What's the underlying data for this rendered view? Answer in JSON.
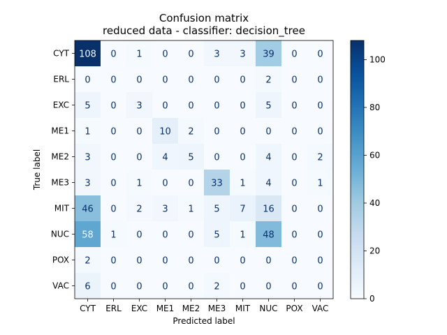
{
  "chart_data": {
    "type": "heatmap",
    "title": "Confusion matrix",
    "subtitle": "reduced data - classifier: decision_tree",
    "xlabel": "Predicted label",
    "ylabel": "True label",
    "categories": [
      "CYT",
      "ERL",
      "EXC",
      "ME1",
      "ME2",
      "ME3",
      "MIT",
      "NUC",
      "POX",
      "VAC"
    ],
    "matrix": [
      [
        108,
        0,
        1,
        0,
        0,
        3,
        3,
        39,
        0,
        0
      ],
      [
        0,
        0,
        0,
        0,
        0,
        0,
        0,
        2,
        0,
        0
      ],
      [
        5,
        0,
        3,
        0,
        0,
        0,
        0,
        5,
        0,
        0
      ],
      [
        1,
        0,
        0,
        10,
        2,
        0,
        0,
        0,
        0,
        0
      ],
      [
        3,
        0,
        0,
        4,
        5,
        0,
        0,
        4,
        0,
        2
      ],
      [
        3,
        0,
        1,
        0,
        0,
        33,
        1,
        4,
        0,
        1
      ],
      [
        46,
        0,
        2,
        3,
        1,
        5,
        7,
        16,
        0,
        0
      ],
      [
        58,
        1,
        0,
        0,
        0,
        5,
        1,
        48,
        0,
        0
      ],
      [
        2,
        0,
        0,
        0,
        0,
        0,
        0,
        0,
        0,
        0
      ],
      [
        6,
        0,
        0,
        0,
        0,
        2,
        0,
        0,
        0,
        0
      ]
    ],
    "colormap": "Blues",
    "colorbar": {
      "range": [
        0,
        108
      ],
      "ticks": [
        "0",
        "20",
        "40",
        "60",
        "80",
        "100"
      ]
    }
  }
}
